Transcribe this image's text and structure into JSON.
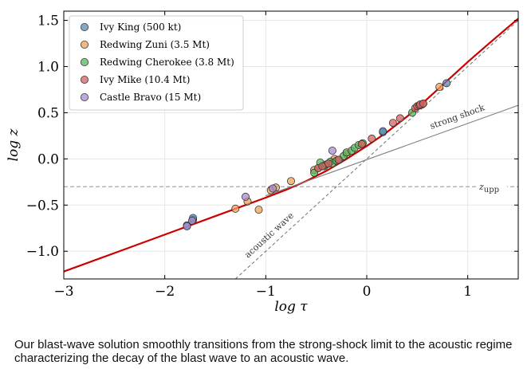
{
  "chart_data": {
    "type": "scatter",
    "xlabel": "log τ",
    "ylabel": "log z",
    "xlim": [
      -3,
      1.5
    ],
    "ylim": [
      -1.3,
      1.6
    ],
    "xticks": [
      "−3",
      "−2",
      "−1",
      "0",
      "1"
    ],
    "xtick_values": [
      -3,
      -2,
      -1,
      0,
      1
    ],
    "yticks": [
      "−1.0",
      "−0.5",
      "0.0",
      "0.5",
      "1.0",
      "1.5"
    ],
    "ytick_values": [
      -1.0,
      -0.5,
      0.0,
      0.5,
      1.0,
      1.5
    ],
    "grid": true,
    "legend_position": "top-left",
    "series": [
      {
        "name": "Ivy King (500 kt)",
        "color": "#5b8cb5",
        "points": [
          [
            -1.78,
            -0.72
          ],
          [
            -1.72,
            -0.66
          ],
          [
            -1.72,
            -0.64
          ],
          [
            0.16,
            0.29
          ],
          [
            0.16,
            0.3
          ],
          [
            0.79,
            0.82
          ]
        ]
      },
      {
        "name": "Redwing Zuni (3.5 Mt)",
        "color": "#f0a15a",
        "points": [
          [
            -1.3,
            -0.54
          ],
          [
            -1.18,
            -0.46
          ],
          [
            -1.07,
            -0.55
          ],
          [
            -0.95,
            -0.34
          ],
          [
            -0.9,
            -0.31
          ],
          [
            -0.75,
            -0.24
          ],
          [
            -0.52,
            -0.12
          ],
          [
            -0.42,
            -0.07
          ],
          [
            -0.32,
            0.0
          ],
          [
            -0.2,
            0.05
          ],
          [
            0.55,
            0.59
          ],
          [
            0.72,
            0.78
          ]
        ]
      },
      {
        "name": "Redwing Cherokee (3.8 Mt)",
        "color": "#5ab55a",
        "points": [
          [
            -0.52,
            -0.15
          ],
          [
            -0.48,
            -0.1
          ],
          [
            -0.46,
            -0.04
          ],
          [
            -0.42,
            -0.08
          ],
          [
            -0.4,
            -0.06
          ],
          [
            -0.36,
            -0.03
          ],
          [
            -0.34,
            -0.05
          ],
          [
            -0.3,
            -0.02
          ],
          [
            -0.27,
            -0.01
          ],
          [
            -0.23,
            0.03
          ],
          [
            -0.2,
            0.07
          ],
          [
            -0.15,
            0.09
          ],
          [
            -0.12,
            0.12
          ],
          [
            -0.08,
            0.15
          ],
          [
            -0.04,
            0.17
          ],
          [
            0.45,
            0.5
          ]
        ]
      },
      {
        "name": "Ivy Mike (10.4 Mt)",
        "color": "#d65f5f",
        "points": [
          [
            -0.48,
            -0.1
          ],
          [
            -0.44,
            -0.08
          ],
          [
            -0.38,
            -0.05
          ],
          [
            -0.28,
            -0.01
          ],
          [
            -0.05,
            0.16
          ],
          [
            0.05,
            0.22
          ],
          [
            0.26,
            0.39
          ],
          [
            0.33,
            0.44
          ],
          [
            0.48,
            0.55
          ],
          [
            0.5,
            0.57
          ],
          [
            0.52,
            0.58
          ],
          [
            0.53,
            0.59
          ],
          [
            0.56,
            0.6
          ]
        ]
      },
      {
        "name": "Castle Bravo (15 Mt)",
        "color": "#a98bd0",
        "points": [
          [
            -1.78,
            -0.73
          ],
          [
            -1.73,
            -0.67
          ],
          [
            -1.2,
            -0.41
          ],
          [
            -0.93,
            -0.32
          ],
          [
            -0.34,
            0.09
          ]
        ]
      }
    ],
    "lines": [
      {
        "label": "",
        "kind": "blast-wave solution",
        "color": "#cc0000",
        "points": [
          [
            -3.0,
            -1.22
          ],
          [
            -2.5,
            -1.02
          ],
          [
            -2.0,
            -0.82
          ],
          [
            -1.5,
            -0.62
          ],
          [
            -1.0,
            -0.42
          ],
          [
            -0.8,
            -0.335
          ],
          [
            -0.6,
            -0.24
          ],
          [
            -0.4,
            -0.13
          ],
          [
            -0.2,
            0.0
          ],
          [
            0.0,
            0.14
          ],
          [
            0.2,
            0.29
          ],
          [
            0.4,
            0.46
          ],
          [
            0.6,
            0.65
          ],
          [
            0.8,
            0.85
          ],
          [
            1.0,
            1.05
          ],
          [
            1.2,
            1.24
          ],
          [
            1.5,
            1.52
          ]
        ]
      },
      {
        "label": "strong shock",
        "kind": "strong-shock asymptote",
        "color": "#808080",
        "points": [
          [
            -1.0,
            -0.4
          ],
          [
            1.5,
            0.58
          ]
        ]
      },
      {
        "label": "acoustic wave",
        "kind": "acoustic asymptote",
        "color": "#707070",
        "dash": true,
        "points": [
          [
            -1.3,
            -1.3
          ],
          [
            1.5,
            1.5
          ]
        ]
      }
    ],
    "hline": {
      "label": "z",
      "label_subscript": "upp",
      "y": -0.3,
      "color": "#808080"
    }
  },
  "caption": "Our blast-wave solution smoothly transitions from the strong-shock limit to the acoustic regime characterizing the decay of the blast wave to an acoustic wave."
}
